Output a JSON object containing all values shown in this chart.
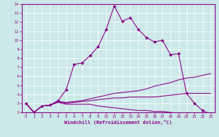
{
  "xlabel": "Windchill (Refroidissement éolien,°C)",
  "bg_color": "#cce8e8",
  "line_color": "#880088",
  "xlim": [
    -0.5,
    23.5
  ],
  "ylim": [
    2,
    14
  ],
  "xticks": [
    0,
    1,
    2,
    3,
    4,
    5,
    6,
    7,
    8,
    9,
    10,
    11,
    12,
    13,
    14,
    15,
    16,
    17,
    18,
    19,
    20,
    21,
    22,
    23
  ],
  "yticks": [
    2,
    3,
    4,
    5,
    6,
    7,
    8,
    9,
    10,
    11,
    12,
    13,
    14
  ],
  "line1_x": [
    0,
    1,
    2,
    3,
    4,
    5,
    6,
    7,
    8,
    9,
    10,
    11,
    12,
    13,
    14,
    15,
    16,
    17,
    18,
    19,
    20,
    21,
    22,
    23
  ],
  "line1_y": [
    3.0,
    2.0,
    2.7,
    2.8,
    3.3,
    4.5,
    7.3,
    7.5,
    8.3,
    9.3,
    11.2,
    13.8,
    12.1,
    12.5,
    11.2,
    10.3,
    9.8,
    10.0,
    8.4,
    8.5,
    4.1,
    3.0,
    2.2,
    1.8
  ],
  "line2_x": [
    0,
    1,
    2,
    3,
    4,
    5,
    6,
    7,
    8,
    9,
    10,
    11,
    12,
    13,
    14,
    15,
    16,
    17,
    18,
    19,
    20,
    21,
    22,
    23
  ],
  "line2_y": [
    3.0,
    2.0,
    2.7,
    2.8,
    3.2,
    3.1,
    3.2,
    3.3,
    3.5,
    3.7,
    3.9,
    4.1,
    4.2,
    4.3,
    4.4,
    4.6,
    4.9,
    5.1,
    5.3,
    5.6,
    5.8,
    5.9,
    6.1,
    6.3
  ],
  "line3_x": [
    0,
    1,
    2,
    3,
    4,
    5,
    6,
    7,
    8,
    9,
    10,
    11,
    12,
    13,
    14,
    15,
    16,
    17,
    18,
    19,
    20,
    21,
    22,
    23
  ],
  "line3_y": [
    3.0,
    2.0,
    2.7,
    2.8,
    3.2,
    3.0,
    3.1,
    3.2,
    3.3,
    3.4,
    3.5,
    3.6,
    3.6,
    3.7,
    3.7,
    3.7,
    3.7,
    3.8,
    3.9,
    4.0,
    4.1,
    4.1,
    4.1,
    4.1
  ],
  "line4_x": [
    0,
    1,
    2,
    3,
    4,
    5,
    6,
    7,
    8,
    9,
    10,
    11,
    12,
    13,
    14,
    15,
    16,
    17,
    18,
    19,
    20,
    21,
    22,
    23
  ],
  "line4_y": [
    3.0,
    2.0,
    2.7,
    2.8,
    3.1,
    2.9,
    2.9,
    2.9,
    2.9,
    2.7,
    2.6,
    2.5,
    2.4,
    2.3,
    2.2,
    2.2,
    2.1,
    2.1,
    2.0,
    1.9,
    1.9,
    1.9,
    1.8,
    1.7
  ],
  "tick_fontsize": 4.0,
  "xlabel_fontsize": 5.0,
  "grid_color": "#ffffff",
  "grid_linewidth": 0.6
}
